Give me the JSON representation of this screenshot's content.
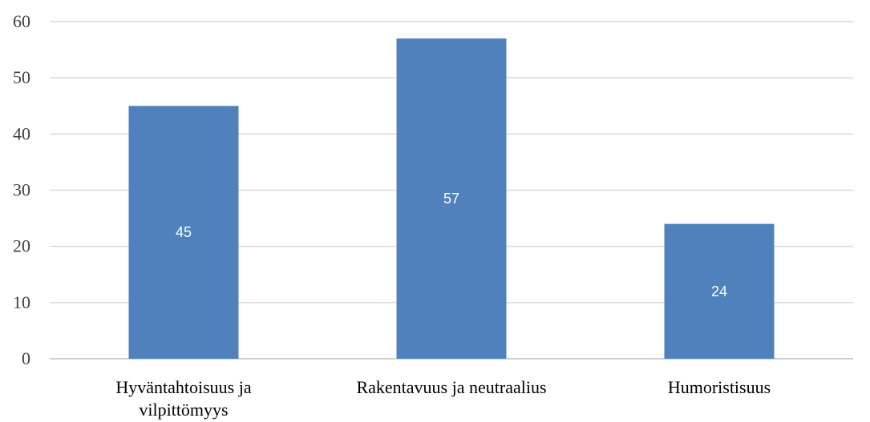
{
  "chart_data": {
    "type": "bar",
    "title": "",
    "xlabel": "",
    "ylabel": "",
    "categories": [
      [
        "Hyväntahtoisuus ja",
        "vilpittömyys"
      ],
      [
        "Rakentavuus ja neutraalius"
      ],
      [
        "Humoristisuus"
      ]
    ],
    "values": [
      45,
      57,
      24
    ],
    "data_labels": [
      "45",
      "57",
      "24"
    ],
    "yticks": [
      "0",
      "10",
      "20",
      "30",
      "40",
      "50",
      "60"
    ],
    "ylim": [
      0,
      60
    ],
    "grid": true,
    "legend": "none",
    "bar_color": "#4f81bd"
  }
}
